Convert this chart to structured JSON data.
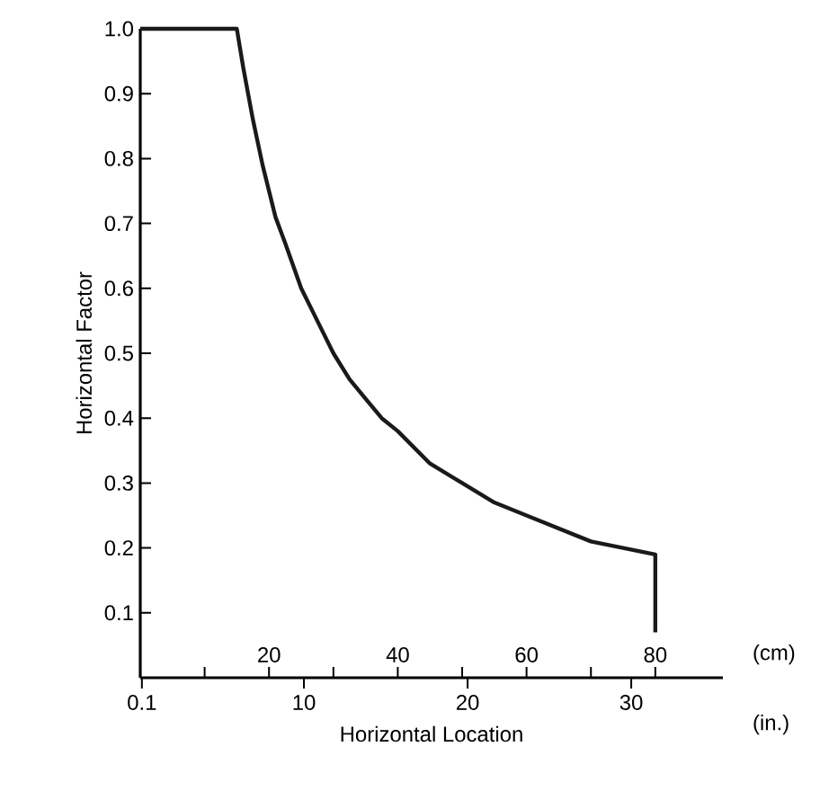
{
  "chart_data": {
    "type": "line",
    "xlabel": "Horizontal Location",
    "ylabel": "Horizontal Factor",
    "x": [
      0,
      15,
      16,
      17.5,
      19,
      20,
      21,
      22.5,
      25,
      27.5,
      30,
      32.5,
      35,
      37.5,
      40,
      45,
      50,
      55,
      60,
      65,
      70,
      75,
      80,
      80
    ],
    "values": [
      1.0,
      1.0,
      0.94,
      0.86,
      0.79,
      0.75,
      0.71,
      0.67,
      0.6,
      0.55,
      0.5,
      0.46,
      0.43,
      0.4,
      0.38,
      0.33,
      0.3,
      0.27,
      0.25,
      0.23,
      0.21,
      0.2,
      0.19,
      0.07
    ],
    "color": "#1a1a1a",
    "line_style": "solid",
    "marker": "none",
    "xlim": [
      0,
      90.5
    ],
    "xticks": [
      {
        "value": 10,
        "label": null
      },
      20,
      {
        "value": 30,
        "label": null
      },
      40,
      {
        "value": 50,
        "label": null
      },
      60,
      {
        "value": 70,
        "label": null
      },
      80
    ],
    "x2lim": [
      0,
      35.6
    ],
    "x2ticks": [
      0.1,
      10,
      20,
      30
    ],
    "ylim": [
      0,
      1.0
    ],
    "yticks": [
      0.1,
      0.2,
      0.3,
      0.4,
      0.5,
      0.6,
      0.7,
      0.8,
      0.9,
      {
        "value": 1.0,
        "label": "1.0"
      }
    ],
    "annotations": [
      "(cm)",
      "(in.)"
    ]
  }
}
